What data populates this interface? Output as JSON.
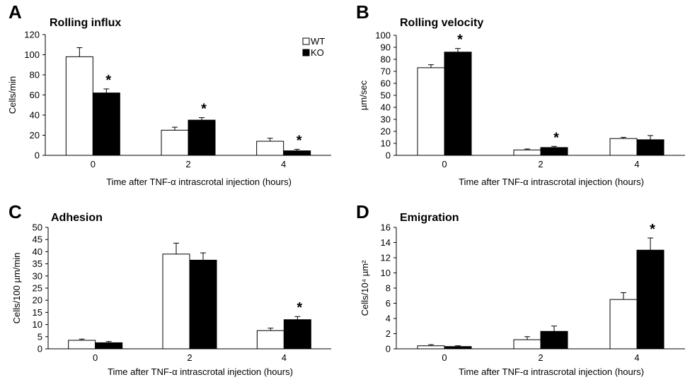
{
  "colors": {
    "wt": "#ffffff",
    "ko": "#000000",
    "stroke": "#000000"
  },
  "legend": {
    "wt": "WT",
    "ko": "KO"
  },
  "chart_data": [
    {
      "type": "bar",
      "panel": "A",
      "title": "Rolling influx",
      "ylabel": "Cells/min",
      "xlabel": "Time after TNF-α intrascrotal injection (hours)",
      "categories": [
        "0",
        "2",
        "4"
      ],
      "ylim": [
        0,
        120
      ],
      "yticks": [
        0,
        20,
        40,
        60,
        80,
        100,
        120
      ],
      "series": [
        {
          "name": "WT",
          "values": [
            98,
            25,
            14
          ],
          "errors": [
            9,
            3,
            3
          ]
        },
        {
          "name": "KO",
          "values": [
            62,
            35,
            4.5
          ],
          "errors": [
            4,
            2.5,
            1.5
          ]
        }
      ],
      "significance": [
        {
          "category": 0,
          "series": "KO",
          "mark": "*"
        },
        {
          "category": 1,
          "series": "KO",
          "mark": "*"
        },
        {
          "category": 2,
          "series": "KO",
          "mark": "*"
        }
      ],
      "legend": true
    },
    {
      "type": "bar",
      "panel": "B",
      "title": "Rolling velocity",
      "ylabel": "µm/sec",
      "xlabel": "Time after TNF-α intrascrotal injection (hours)",
      "categories": [
        "0",
        "2",
        "4"
      ],
      "ylim": [
        0,
        100
      ],
      "yticks": [
        0,
        10,
        20,
        30,
        40,
        50,
        60,
        70,
        80,
        90,
        100
      ],
      "series": [
        {
          "name": "WT",
          "values": [
            73,
            4.5,
            14
          ],
          "errors": [
            2.5,
            0.8,
            1
          ]
        },
        {
          "name": "KO",
          "values": [
            86,
            6.5,
            13
          ],
          "errors": [
            3,
            1,
            3.5
          ]
        }
      ],
      "significance": [
        {
          "category": 0,
          "series": "KO",
          "mark": "*"
        },
        {
          "category": 1,
          "series": "KO",
          "mark": "*"
        }
      ],
      "legend": false
    },
    {
      "type": "bar",
      "panel": "C",
      "title": "Adhesion",
      "ylabel": "Cells/100 µm/min",
      "xlabel": "Time after TNF-α intrascrotal injection (hours)",
      "categories": [
        "0",
        "2",
        "4"
      ],
      "ylim": [
        0,
        50
      ],
      "yticks": [
        0,
        5,
        10,
        15,
        20,
        25,
        30,
        35,
        40,
        45,
        50
      ],
      "series": [
        {
          "name": "WT",
          "values": [
            3.5,
            39,
            7.5
          ],
          "errors": [
            0.5,
            4.5,
            1
          ]
        },
        {
          "name": "KO",
          "values": [
            2.5,
            36.5,
            12
          ],
          "errors": [
            0.5,
            3,
            1.3
          ]
        }
      ],
      "significance": [
        {
          "category": 2,
          "series": "KO",
          "mark": "*"
        }
      ],
      "legend": false
    },
    {
      "type": "bar",
      "panel": "D",
      "title": "Emigration",
      "ylabel": "Cells/10⁴ µm²",
      "xlabel": "Time after TNF-α intrascrotal injection (hours)",
      "categories": [
        "0",
        "2",
        "4"
      ],
      "ylim": [
        0,
        16
      ],
      "yticks": [
        0,
        2,
        4,
        6,
        8,
        10,
        12,
        14,
        16
      ],
      "series": [
        {
          "name": "WT",
          "values": [
            0.4,
            1.2,
            6.5
          ],
          "errors": [
            0.15,
            0.4,
            0.9
          ]
        },
        {
          "name": "KO",
          "values": [
            0.3,
            2.3,
            13
          ],
          "errors": [
            0.1,
            0.7,
            1.6
          ]
        }
      ],
      "significance": [
        {
          "category": 2,
          "series": "KO",
          "mark": "*"
        }
      ],
      "legend": false
    }
  ]
}
